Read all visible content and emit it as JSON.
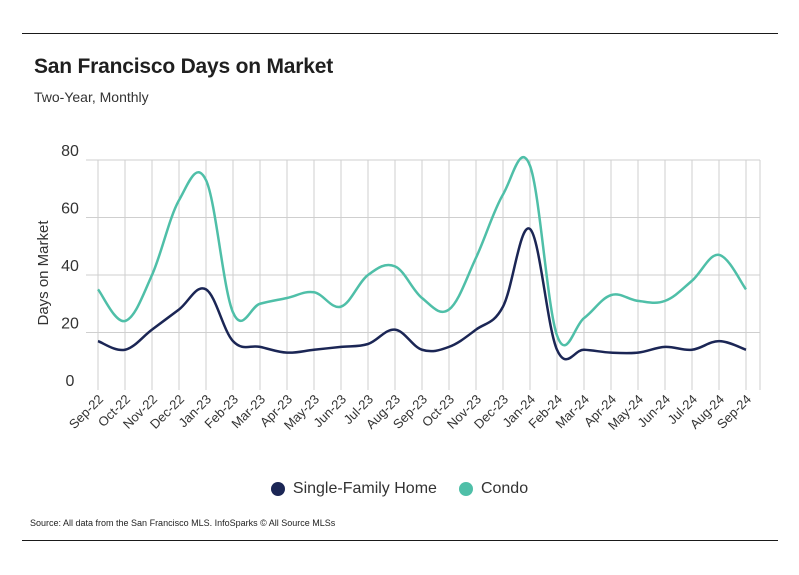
{
  "title": "San Francisco Days on Market",
  "subtitle": "Two-Year, Monthly",
  "source": "Source:  All data from the San Francisco MLS. InfoSparks © All Source MLSs",
  "chart_data": {
    "type": "line",
    "title": "San Francisco Days on Market",
    "subtitle": "Two-Year, Monthly",
    "xlabel": "",
    "ylabel": "Days on Market",
    "ylim": [
      0,
      80
    ],
    "yticks": [
      0,
      20,
      40,
      60,
      80
    ],
    "grid": true,
    "legend": "bottom",
    "categories": [
      "Sep-22",
      "Oct-22",
      "Nov-22",
      "Dec-22",
      "Jan-23",
      "Feb-23",
      "Mar-23",
      "Apr-23",
      "May-23",
      "Jun-23",
      "Jul-23",
      "Aug-23",
      "Sep-23",
      "Oct-23",
      "Nov-23",
      "Dec-23",
      "Jan-24",
      "Feb-24",
      "Mar-24",
      "Apr-24",
      "May-24",
      "Jun-24",
      "Jul-24",
      "Aug-24",
      "Sep-24"
    ],
    "series": [
      {
        "name": "Single-Family Home",
        "color": "#1b2655",
        "values": [
          17,
          14,
          21,
          28,
          35,
          17,
          15,
          13,
          14,
          15,
          16,
          21,
          14,
          15,
          21,
          29,
          56,
          14,
          14,
          13,
          13,
          15,
          14,
          17,
          14
        ]
      },
      {
        "name": "Condo",
        "color": "#4fbfa8",
        "values": [
          35,
          24,
          40,
          66,
          73,
          27,
          30,
          32,
          34,
          29,
          40,
          43,
          32,
          28,
          46,
          68,
          78,
          19,
          25,
          33,
          31,
          31,
          38,
          47,
          35
        ]
      }
    ]
  }
}
